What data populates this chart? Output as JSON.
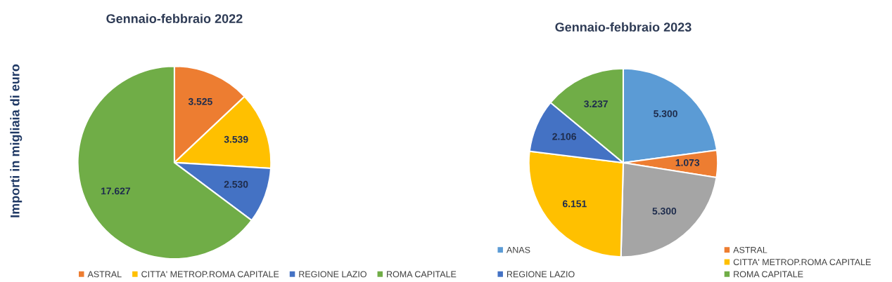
{
  "chart_data": [
    {
      "type": "pie",
      "title": "Gennaio-febbraio 2022",
      "ylabel": "Importi in migliaia di euro",
      "categories": [
        "ASTRAL",
        "CITTA' METROP.ROMA CAPITALE",
        "REGIONE LAZIO",
        "ROMA CAPITALE"
      ],
      "values": [
        3525,
        3539,
        2530,
        17627
      ],
      "value_labels": [
        "3.525",
        "3.539",
        "2.530",
        "17.627"
      ],
      "colors": [
        "#ed7d31",
        "#ffc000",
        "#4472c4",
        "#70ad47"
      ],
      "legend": "bottom"
    },
    {
      "type": "pie",
      "title": "Gennaio-febbraio 2023",
      "categories": [
        "ANAS",
        "ASTRAL",
        null,
        "CITTA' METROP.ROMA CAPITALE",
        "REGIONE LAZIO",
        "ROMA CAPITALE"
      ],
      "values": [
        5300,
        1073,
        5300,
        6151,
        2106,
        3237
      ],
      "value_labels": [
        "5.300",
        "1.073",
        "5.300",
        "6.151",
        "2.106",
        "3.237"
      ],
      "colors": [
        "#5b9bd5",
        "#ed7d31",
        "#a5a5a5",
        "#ffc000",
        "#4472c4",
        "#70ad47"
      ],
      "legend": "bottom right"
    }
  ]
}
